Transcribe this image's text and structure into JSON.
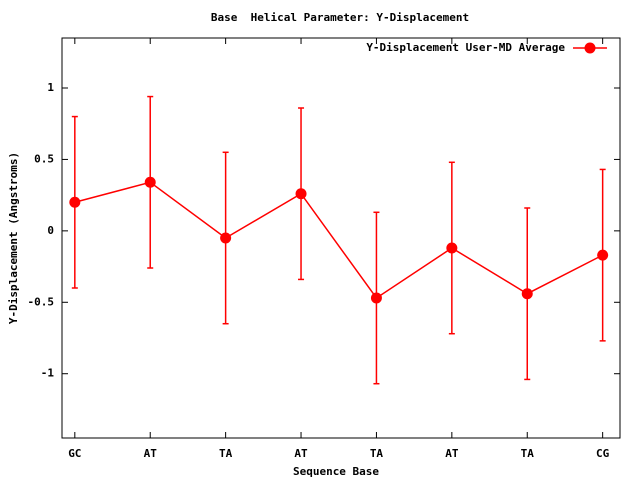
{
  "chart_data": {
    "type": "line",
    "title": "Base  Helical Parameter: Y-Displacement",
    "x_label": "Sequence Base",
    "y_label": "Y-Displacement (Angstroms)",
    "categories": [
      "GC",
      "AT",
      "TA",
      "AT",
      "TA",
      "AT",
      "TA",
      "CG"
    ],
    "series": [
      {
        "name": "Y-Displacement User-MD Average",
        "color": "#ff0000",
        "values": [
          0.2,
          0.34,
          -0.05,
          0.26,
          -0.47,
          -0.12,
          -0.44,
          -0.17
        ],
        "errors": [
          0.6,
          0.6,
          0.6,
          0.6,
          0.6,
          0.6,
          0.6,
          0.6
        ]
      }
    ],
    "ylim": [
      -1.45,
      1.35
    ],
    "yticks": [
      -1,
      -0.5,
      0,
      0.5,
      1
    ],
    "grid": false,
    "legend": "top-right"
  }
}
